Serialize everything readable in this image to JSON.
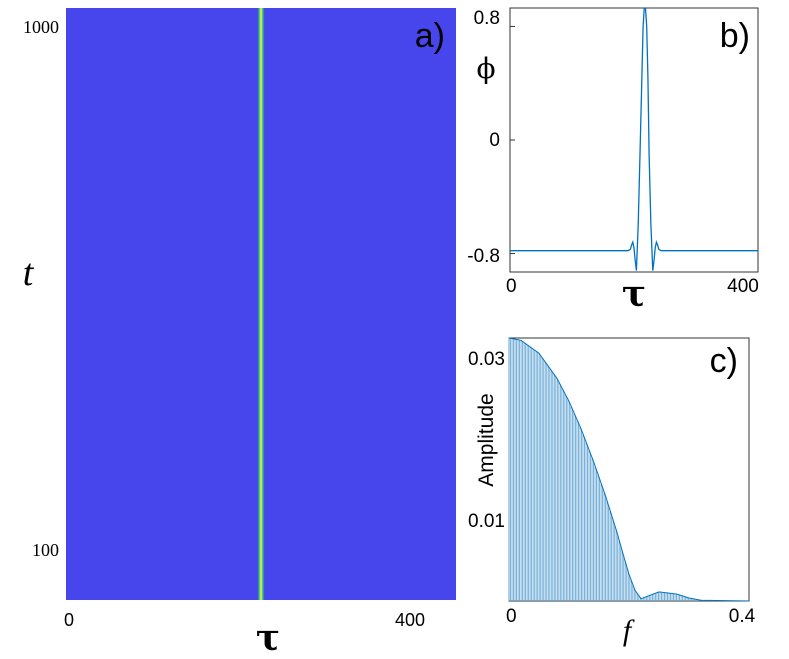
{
  "chart_data": [
    {
      "type": "heatmap",
      "panel_label": "a)",
      "xlabel": "τ",
      "ylabel": "t",
      "x_ticks": [
        "0",
        "400"
      ],
      "y_ticks": [
        "1000",
        "100"
      ],
      "xlim": [
        0,
        450
      ],
      "ylim": [
        0,
        1050
      ],
      "description_values": {
        "background_level": "low",
        "pulse_center_tau": 225,
        "pulse_width_tau": 8
      },
      "colors": {
        "background": "#4646ec",
        "ridge_edge": "#2fbf9a",
        "ridge_core": "#ffff20"
      }
    },
    {
      "type": "line",
      "panel_label": "b)",
      "xlabel": "τ",
      "ylabel": "ϕ",
      "x_ticks": [
        "0",
        "400"
      ],
      "y_ticks": [
        "0.8",
        "0",
        "-0.8"
      ],
      "xlim": [
        0,
        410
      ],
      "ylim": [
        -0.93,
        0.93
      ],
      "series": [
        {
          "x": [
            0,
            190,
            195,
            199,
            201,
            203,
            205,
            207,
            209,
            212,
            215,
            218,
            220,
            222,
            224,
            226,
            228,
            230,
            233,
            236,
            238,
            240,
            242,
            244,
            246,
            250,
            255,
            410
          ],
          "y": [
            -0.78,
            -0.78,
            -0.78,
            -0.77,
            -0.74,
            -0.72,
            -0.76,
            -0.85,
            -0.92,
            -0.6,
            -0.1,
            0.45,
            0.8,
            0.93,
            0.93,
            0.8,
            0.45,
            -0.1,
            -0.6,
            -0.92,
            -0.85,
            -0.76,
            -0.72,
            -0.74,
            -0.77,
            -0.78,
            -0.78,
            -0.78
          ]
        }
      ],
      "colors": {
        "line": "#0072bd"
      }
    },
    {
      "type": "bar",
      "panel_label": "c)",
      "xlabel": "f",
      "ylabel": "Amplitude",
      "x_ticks": [
        "0",
        "0.4"
      ],
      "y_ticks": [
        "0.03",
        "0.01"
      ],
      "xlim": [
        0,
        0.4
      ],
      "ylim": [
        0,
        0.0345
      ],
      "envelope": {
        "f": [
          0,
          0.02,
          0.05,
          0.08,
          0.1,
          0.12,
          0.14,
          0.16,
          0.18,
          0.19,
          0.2,
          0.21,
          0.22,
          0.25,
          0.28,
          0.3,
          0.32,
          0.4
        ],
        "amp": [
          0.0345,
          0.0342,
          0.0325,
          0.0292,
          0.0262,
          0.0226,
          0.0185,
          0.014,
          0.009,
          0.0062,
          0.0035,
          0.0014,
          0.0003,
          0.0012,
          0.0009,
          0.0004,
          0.0001,
          0.0
        ]
      },
      "colors": {
        "bars": "#6aa9d6",
        "envelope": "#0072bd"
      }
    }
  ]
}
